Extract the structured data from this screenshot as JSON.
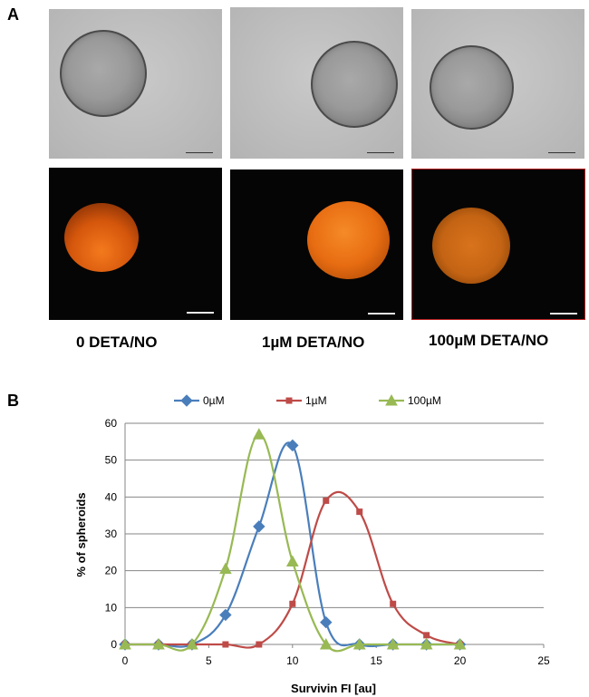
{
  "panel_a": {
    "letter": "A",
    "captions": [
      "0   DETA/NO",
      "1µM  DETA/NO",
      "100µM  DETA/NO"
    ]
  },
  "panel_b": {
    "letter": "B"
  },
  "colors": {
    "s0": "#4a7ebb",
    "s1": "#be4b48",
    "s100": "#98b954",
    "fluor": "#e0610e"
  },
  "chart_data": {
    "type": "line",
    "xlabel": "Survivin FI [au]",
    "ylabel": "% of spheroids",
    "xlim": [
      0,
      25
    ],
    "ylim": [
      0,
      60
    ],
    "xticks": [
      0,
      5,
      10,
      15,
      20,
      25
    ],
    "yticks": [
      0,
      10,
      20,
      30,
      40,
      50,
      60
    ],
    "grid": "horizontal",
    "legend_position": "top",
    "series": [
      {
        "name": "0µM",
        "marker": "diamond",
        "color": "#4a7ebb",
        "x": [
          0,
          2,
          4,
          6,
          8,
          10,
          12,
          14,
          16,
          18,
          20
        ],
        "y": [
          0,
          0,
          0,
          8,
          32,
          54,
          6,
          0,
          0,
          0,
          0
        ]
      },
      {
        "name": "1µM",
        "marker": "square",
        "color": "#be4b48",
        "x": [
          0,
          2,
          4,
          6,
          8,
          10,
          12,
          14,
          16,
          18,
          20
        ],
        "y": [
          0,
          0,
          0,
          0,
          0,
          11,
          39,
          36,
          11,
          2.5,
          0
        ]
      },
      {
        "name": "100µM",
        "marker": "triangle",
        "color": "#98b954",
        "x": [
          0,
          2,
          4,
          6,
          8,
          10,
          12,
          14,
          16,
          18,
          20
        ],
        "y": [
          0,
          0,
          0,
          20.5,
          57,
          22.5,
          0,
          0,
          0,
          0,
          0
        ]
      }
    ]
  }
}
